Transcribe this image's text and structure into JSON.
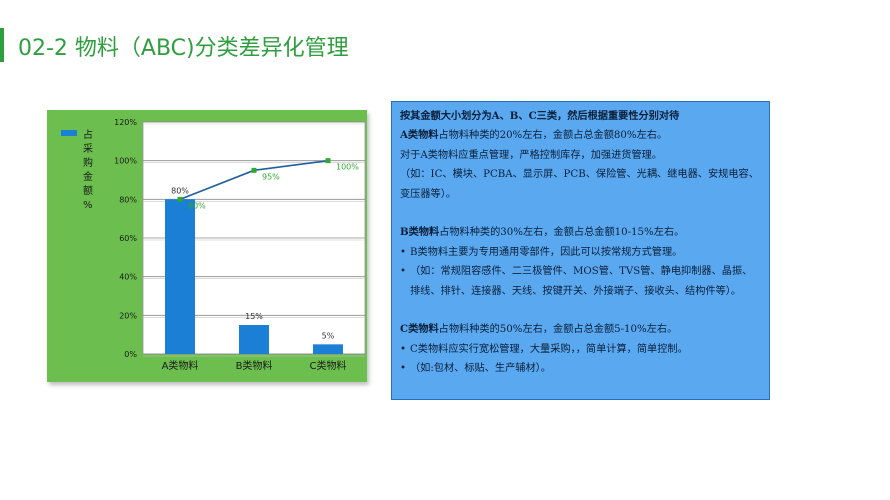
{
  "title": "02-2 物料（ABC)分类差异化管理",
  "chart_data": {
    "type": "bar",
    "categories": [
      "A类物料",
      "B类物料",
      "C类物料"
    ],
    "series": [
      {
        "name": "占采购金额%",
        "type": "bar",
        "values": [
          80,
          15,
          5
        ],
        "labels": [
          "80%",
          "15%",
          "5%"
        ],
        "color": "#1c7fd6"
      },
      {
        "name": "",
        "type": "line",
        "values": [
          80,
          95,
          100
        ],
        "labels": [
          "80%",
          "95%",
          "100%"
        ],
        "color": "#1f5f9e"
      }
    ],
    "legend": {
      "text": "占采购金额%",
      "position": "left"
    },
    "ylim": [
      0,
      120
    ],
    "yticks": [
      "0%",
      "20%",
      "40%",
      "60%",
      "80%",
      "100%",
      "120%"
    ],
    "grid": true
  },
  "panel": {
    "heading": "按其金额大小划分为A、B、C三类，然后根据重要性分别对待",
    "a_title": "A类物料",
    "a_line": "占物料种类的20%左右，金额占总金额80%左右。",
    "a_text1": "对于A类物料应重点管理，严格控制库存，加强进货管理。",
    "a_text2": "（如：IC、模块、PCBA、显示屏、PCB、保险管、光耦、继电器、安规电容、变压器等）。",
    "b_title": "B类物料",
    "b_line": "占物料种类的30%左右，金额占总金额10-15%左右。",
    "b_bullet1": "B类物料主要为专用通用零部件，因此可以按常规方式管理。",
    "b_bullet2": "（如：常规阻容感件、二三极管件、MOS管、TVS管、静电抑制器、晶振、排线、排针、连接器、天线、按键开关、外接端子、接收头、结构件等）。",
    "c_title": "C类物料",
    "c_line": "占物料种类的50%左右，金额占总金额5-10%左右。",
    "c_bullet1": "C类物料应实行宽松管理，大量采购，，简单计算，简单控制。",
    "c_bullet2": "（如:包材、标贴、生产辅材）。",
    "bullet": "•"
  }
}
